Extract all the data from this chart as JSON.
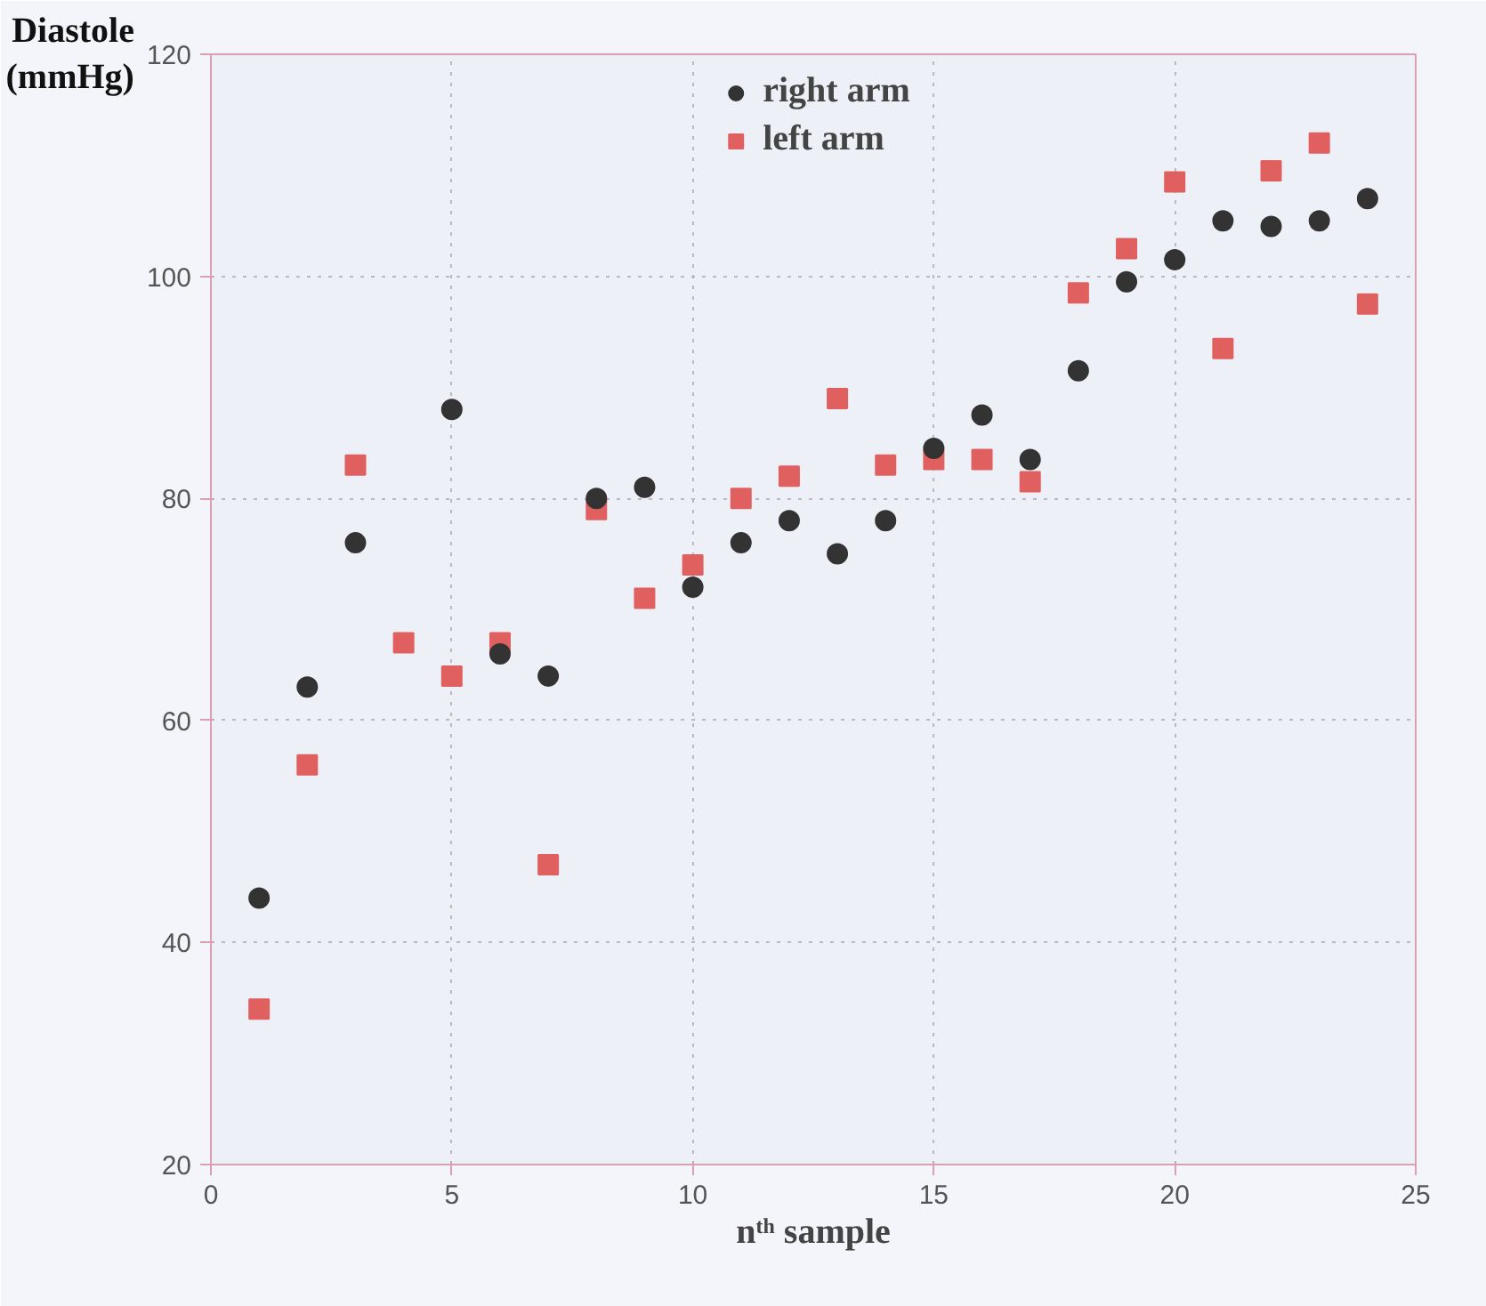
{
  "chart_data": {
    "type": "scatter",
    "xlabel": "nᵗʰ sample",
    "ylabel": "Diastole (mmHg)",
    "x": [
      1,
      2,
      3,
      4,
      5,
      6,
      7,
      8,
      9,
      10,
      11,
      12,
      13,
      14,
      15,
      16,
      17,
      18,
      19,
      20,
      21,
      22,
      23,
      24
    ],
    "series": [
      {
        "name": "right arm",
        "color": "#333333",
        "marker": "circle",
        "values": [
          44,
          63,
          76,
          null,
          88,
          66,
          64,
          80,
          81,
          72,
          76,
          78,
          75,
          78,
          84.5,
          87.5,
          83.5,
          91.5,
          99.5,
          101.5,
          105,
          104.5,
          105,
          107
        ]
      },
      {
        "name": "left arm",
        "color": "#e06060",
        "marker": "square",
        "values": [
          34,
          56,
          83,
          67,
          64,
          67,
          47,
          79,
          71,
          74,
          80,
          82,
          89,
          83,
          83.5,
          83.5,
          81.5,
          98.5,
          102.5,
          108.5,
          93.5,
          109.5,
          112,
          97.5
        ]
      }
    ],
    "xlim": [
      0,
      25
    ],
    "xticks": [
      0,
      5,
      10,
      15,
      20,
      25
    ],
    "ylim": [
      20,
      120
    ],
    "yticks": [
      20,
      40,
      60,
      80,
      100,
      120
    ],
    "grid": true,
    "legend": "top"
  }
}
